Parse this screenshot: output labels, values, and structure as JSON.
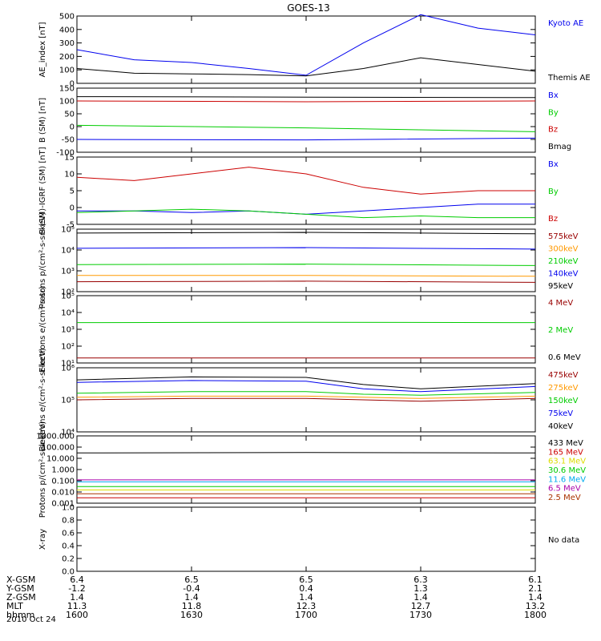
{
  "title": "GOES-13",
  "colors": {
    "black": "#000000",
    "blue": "#0000ee",
    "red": "#cc0000",
    "green": "#00cc00",
    "dark_red": "#990000",
    "orange": "#ff9900",
    "cyan": "#00aaee",
    "yellow": "#dddd00",
    "purple": "#aa00aa",
    "brown": "#aa3300"
  },
  "chart_data": [
    {
      "type": "line",
      "id": "ae",
      "ylabel": "AE_index [nT]",
      "ylim": [
        0,
        500
      ],
      "ticks": [
        "0",
        "100",
        "200",
        "300",
        "400",
        "500"
      ],
      "x": [
        1600,
        1615,
        1630,
        1645,
        1700,
        1715,
        1730,
        1745,
        1800
      ],
      "series": [
        {
          "name": "Kyoto AE",
          "color": "#0000ee",
          "values": [
            250,
            175,
            155,
            110,
            60,
            300,
            510,
            410,
            360
          ]
        },
        {
          "name": "Themis AE",
          "color": "#000000",
          "values": [
            110,
            75,
            70,
            65,
            55,
            110,
            190,
            140,
            90
          ]
        }
      ],
      "legend": [
        "Kyoto AE",
        "Themis AE"
      ]
    },
    {
      "type": "line",
      "id": "b_sm",
      "ylabel": "B (SM) [nT]",
      "ylim": [
        -100,
        150
      ],
      "ticks": [
        "-100",
        "-50",
        "0",
        "50",
        "100",
        "150"
      ],
      "x": [
        1600,
        1700,
        1800
      ],
      "series": [
        {
          "name": "Bx",
          "color": "#0000ee",
          "values": [
            -50,
            -52,
            -45
          ]
        },
        {
          "name": "By",
          "color": "#00cc00",
          "values": [
            5,
            -5,
            -20
          ]
        },
        {
          "name": "Bz",
          "color": "#cc0000",
          "values": [
            100,
            97,
            100
          ]
        },
        {
          "name": "Bmag",
          "color": "#000000",
          "values": [
            117,
            115,
            113
          ]
        }
      ],
      "legend": [
        "Bx",
        "By",
        "Bz",
        "Bmag"
      ]
    },
    {
      "type": "line",
      "id": "b_igrf",
      "ylabel": "B (SM)-IGRF (SM) [nT]",
      "ylim": [
        -5,
        15
      ],
      "ticks": [
        "-5",
        "0",
        "5",
        "10",
        "15"
      ],
      "x": [
        1600,
        1615,
        1630,
        1645,
        1700,
        1715,
        1730,
        1745,
        1800
      ],
      "series": [
        {
          "name": "Bx",
          "color": "#0000ee",
          "values": [
            -1,
            -1,
            -1.5,
            -1,
            -2,
            -1,
            0,
            1,
            1
          ]
        },
        {
          "name": "By",
          "color": "#00cc00",
          "values": [
            -1.5,
            -1,
            -0.5,
            -1,
            -2,
            -3,
            -2.5,
            -3,
            -3
          ]
        },
        {
          "name": "Bz",
          "color": "#cc0000",
          "values": [
            9,
            8,
            10,
            12,
            10,
            6,
            4,
            5,
            5
          ]
        }
      ],
      "legend": [
        "Bx",
        "By",
        "Bz"
      ]
    },
    {
      "type": "line",
      "id": "protons_kev",
      "log": true,
      "ylabel": "Protons p/(cm²-s-sr-keV)",
      "ylim": [
        100,
        100000
      ],
      "ticks": [
        "10²",
        "10³",
        "10⁴",
        "10⁵"
      ],
      "x": [
        1600,
        1700,
        1800
      ],
      "series": [
        {
          "name": "575keV",
          "color": "#990000",
          "values": [
            300,
            320,
            280
          ]
        },
        {
          "name": "300keV",
          "color": "#ff9900",
          "values": [
            600,
            600,
            550
          ]
        },
        {
          "name": "210keV",
          "color": "#00cc00",
          "values": [
            2000,
            2100,
            1800
          ]
        },
        {
          "name": "140keV",
          "color": "#0000ee",
          "values": [
            12000,
            13000,
            11000
          ]
        },
        {
          "name": "95keV",
          "color": "#000000",
          "values": [
            65000,
            70000,
            60000
          ]
        }
      ],
      "legend": [
        "575keV",
        "300keV",
        "210keV",
        "140keV",
        "95keV"
      ]
    },
    {
      "type": "line",
      "id": "electrons_mev",
      "log": true,
      "ylabel": "Electrons e/(cm²-s-sr)",
      "ylim": [
        10,
        100000
      ],
      "ticks": [
        "10¹",
        "10²",
        "10³",
        "10⁴",
        "10⁵"
      ],
      "x": [
        1600,
        1700,
        1800
      ],
      "series": [
        {
          "name": "4 MeV",
          "color": "#990000",
          "values": [
            20,
            20,
            20
          ]
        },
        {
          "name": "2 MeV",
          "color": "#00cc00",
          "values": [
            2500,
            2600,
            2500
          ]
        },
        {
          "name": "0.6 MeV",
          "color": "#000000",
          "values": [
            null,
            null,
            null
          ]
        }
      ],
      "legend": [
        "4 MeV",
        "2 MeV",
        "0.6 MeV"
      ]
    },
    {
      "type": "line",
      "id": "electrons_kev",
      "log": true,
      "ylabel": "Electrons e/(cm²-s-sr-keV)",
      "ylim": [
        10000,
        1000000
      ],
      "ticks": [
        "10⁴",
        "10⁵",
        "10⁶"
      ],
      "x": [
        1600,
        1630,
        1700,
        1715,
        1730,
        1800
      ],
      "series": [
        {
          "name": "475keV",
          "color": "#990000",
          "values": [
            100000,
            110000,
            110000,
            100000,
            90000,
            110000
          ]
        },
        {
          "name": "275keV",
          "color": "#ff9900",
          "values": [
            120000,
            130000,
            130000,
            120000,
            110000,
            130000
          ]
        },
        {
          "name": "150keV",
          "color": "#00cc00",
          "values": [
            160000,
            180000,
            180000,
            150000,
            140000,
            170000
          ]
        },
        {
          "name": "75keV",
          "color": "#0000ee",
          "values": [
            350000,
            400000,
            380000,
            220000,
            180000,
            260000
          ]
        },
        {
          "name": "40keV",
          "color": "#000000",
          "values": [
            420000,
            520000,
            500000,
            300000,
            220000,
            320000
          ]
        }
      ],
      "legend": [
        "475keV",
        "275keV",
        "150keV",
        "75keV",
        "40keV"
      ]
    },
    {
      "type": "line",
      "id": "protons_mev",
      "log": true,
      "ylabel": "Protons p/(cm²-s-sr-keV)",
      "ylim": [
        0.001,
        1000
      ],
      "ticks": [
        "0.001",
        "0.010",
        "0.100",
        "1.000",
        "10.000",
        "100.000",
        "1000.000"
      ],
      "x": [
        1600,
        1700,
        1800
      ],
      "series": [
        {
          "name": "433 MeV",
          "color": "#000000",
          "values": [
            30,
            33,
            30
          ]
        },
        {
          "name": "165 MeV",
          "color": "#cc0000",
          "values": [
            0.003,
            0.003,
            0.003
          ]
        },
        {
          "name": "63.1 MeV",
          "color": "#dddd00",
          "values": [
            0.015,
            0.015,
            0.015
          ]
        },
        {
          "name": "30.6 MeV",
          "color": "#00cc00",
          "values": [
            0.03,
            0.03,
            0.03
          ]
        },
        {
          "name": "11.6 MeV",
          "color": "#00aaee",
          "values": [
            0.08,
            0.08,
            0.08
          ]
        },
        {
          "name": "6.5 MeV",
          "color": "#aa00aa",
          "values": [
            0.12,
            0.12,
            0.12
          ]
        },
        {
          "name": "2.5 MeV",
          "color": "#aa3300",
          "values": [
            0.007,
            0.007,
            0.007
          ]
        }
      ],
      "legend": [
        "433 MeV",
        "165 MeV",
        "63.1 MeV",
        "30.6 MeV",
        "11.6 MeV",
        "6.5 MeV",
        "2.5 MeV"
      ]
    },
    {
      "type": "line",
      "id": "xray",
      "ylabel": "X-ray",
      "ylim": [
        0,
        1
      ],
      "ticks": [
        "0.0",
        "0.2",
        "0.4",
        "0.6",
        "0.8",
        "1.0"
      ],
      "x": [],
      "series": [],
      "legend": [],
      "note": "No data"
    }
  ],
  "ephemeris": {
    "labels": [
      "X-GSM",
      "Y-GSM",
      "Z-GSM",
      "MLT",
      "hhmm"
    ],
    "date": "2010 Oct 24",
    "columns": [
      [
        "6.4",
        "-1.2",
        "1.4",
        "11.3",
        "1600"
      ],
      [
        "6.5",
        "-0.4",
        "1.4",
        "11.8",
        "1630"
      ],
      [
        "6.5",
        "0.4",
        "1.4",
        "12.3",
        "1700"
      ],
      [
        "6.3",
        "1.3",
        "1.4",
        "12.7",
        "1730"
      ],
      [
        "6.1",
        "2.1",
        "1.4",
        "13.2",
        "1800"
      ]
    ]
  }
}
